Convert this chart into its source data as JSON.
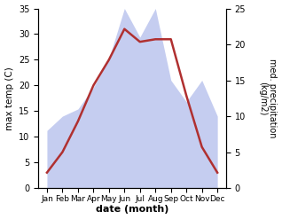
{
  "months": [
    "Jan",
    "Feb",
    "Mar",
    "Apr",
    "May",
    "Jun",
    "Jul",
    "Aug",
    "Sep",
    "Oct",
    "Nov",
    "Dec"
  ],
  "temperature": [
    3,
    7,
    13,
    20,
    25,
    31,
    28.5,
    29,
    29,
    18,
    8,
    3
  ],
  "precipitation": [
    8,
    10,
    11,
    14,
    18,
    25,
    21,
    25,
    15,
    12,
    15,
    10
  ],
  "temp_color": "#b03030",
  "precip_fill_color": "#c5cdf0",
  "left_ylabel": "max temp (C)",
  "right_ylabel": "med. precipitation\n(kg/m2)",
  "xlabel": "date (month)",
  "left_ylim": [
    0,
    35
  ],
  "right_ylim": [
    0,
    25
  ],
  "left_yticks": [
    0,
    5,
    10,
    15,
    20,
    25,
    30,
    35
  ],
  "right_yticks": [
    0,
    5,
    10,
    15,
    20,
    25
  ],
  "figsize": [
    3.18,
    2.47
  ],
  "dpi": 100
}
